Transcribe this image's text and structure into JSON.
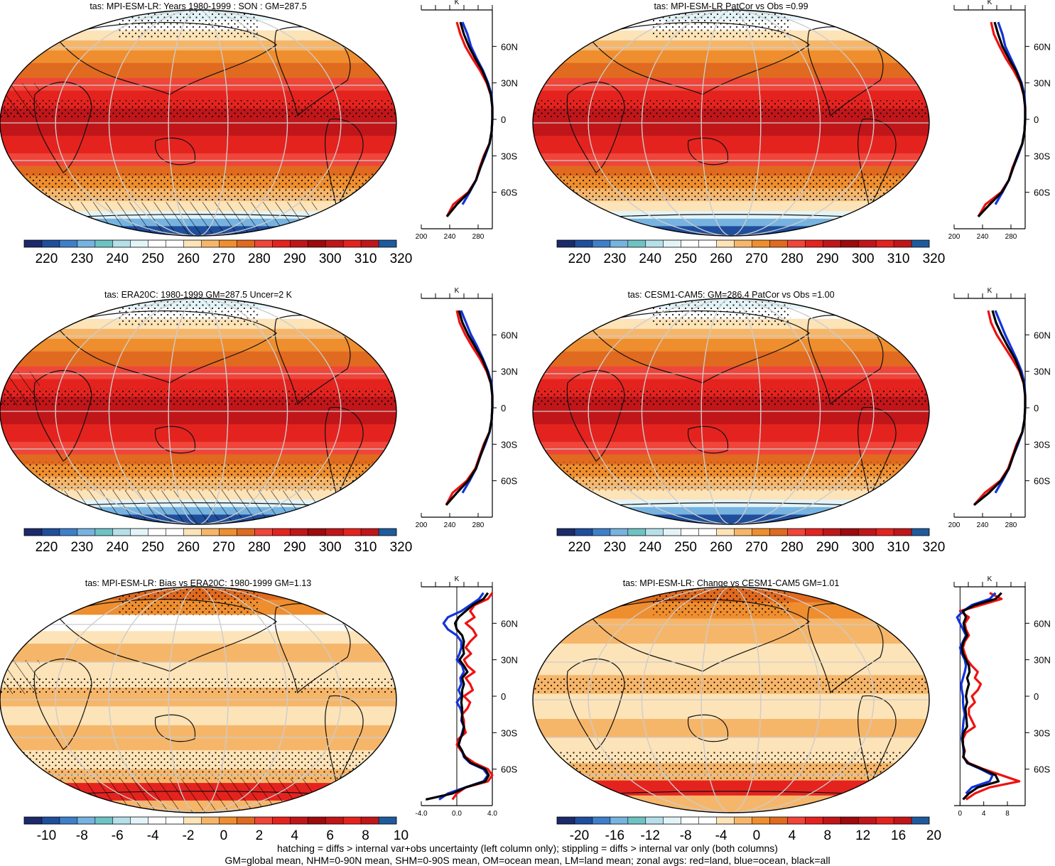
{
  "panels": [
    {
      "id": "p1",
      "title": "tas: MPI-ESM-LR: Years 1980-1999 : SON : GM=287.5",
      "colorbar": {
        "ticks": [
          "220",
          "230",
          "240",
          "250",
          "260",
          "270",
          "280",
          "290",
          "300",
          "310",
          "320"
        ],
        "colors": [
          "#1b2a6b",
          "#1f4e9c",
          "#3f7fc9",
          "#76b3e0",
          "#6fc2c4",
          "#b5e0ea",
          "#e3f4f8",
          "#ffffff",
          "#ffffff",
          "#fde3b8",
          "#f6b66a",
          "#ef8e2f",
          "#e06a1f",
          "#f0453a",
          "#e4231f",
          "#c0161a",
          "#9d0b0e",
          "#c0161a",
          "#e4231f",
          "#c0161a",
          "#1f5b9c"
        ]
      },
      "zonal": {
        "x_ticks": [
          "200",
          "240",
          "280"
        ],
        "xlim": [
          200,
          300
        ],
        "unit": "K",
        "y_ticks": [
          "60N",
          "30N",
          "0",
          "30S",
          "60S"
        ]
      },
      "hatching": true
    },
    {
      "id": "p2",
      "title": "tas: MPI-ESM-LR PatCor vs Obs =0.99",
      "colorbar": {
        "ticks": [
          "220",
          "230",
          "240",
          "250",
          "260",
          "270",
          "280",
          "290",
          "300",
          "310",
          "320"
        ],
        "colors": [
          "#1b2a6b",
          "#1f4e9c",
          "#3f7fc9",
          "#76b3e0",
          "#6fc2c4",
          "#b5e0ea",
          "#e3f4f8",
          "#ffffff",
          "#ffffff",
          "#fde3b8",
          "#f6b66a",
          "#ef8e2f",
          "#e06a1f",
          "#f0453a",
          "#e4231f",
          "#c0161a",
          "#9d0b0e",
          "#c0161a",
          "#e4231f",
          "#c0161a",
          "#1f5b9c"
        ]
      },
      "zonal": {
        "x_ticks": [
          "200",
          "240",
          "280"
        ],
        "xlim": [
          200,
          300
        ],
        "unit": "K",
        "y_ticks": [
          "60N",
          "30N",
          "0",
          "30S",
          "60S"
        ]
      },
      "hatching": false
    },
    {
      "id": "p3",
      "title": "tas: ERA20C: 1980-1999 GM=287.5 Uncer=2 K",
      "colorbar": {
        "ticks": [
          "220",
          "230",
          "240",
          "250",
          "260",
          "270",
          "280",
          "290",
          "300",
          "310",
          "320"
        ],
        "colors": [
          "#1b2a6b",
          "#1f4e9c",
          "#3f7fc9",
          "#76b3e0",
          "#6fc2c4",
          "#b5e0ea",
          "#e3f4f8",
          "#ffffff",
          "#ffffff",
          "#fde3b8",
          "#f6b66a",
          "#ef8e2f",
          "#e06a1f",
          "#f0453a",
          "#e4231f",
          "#c0161a",
          "#9d0b0e",
          "#c0161a",
          "#e4231f",
          "#c0161a",
          "#1f5b9c"
        ]
      },
      "zonal": {
        "x_ticks": [
          "200",
          "240",
          "280"
        ],
        "xlim": [
          200,
          300
        ],
        "unit": "K",
        "y_ticks": [
          "60N",
          "30N",
          "0",
          "30S",
          "60S"
        ]
      },
      "hatching": true
    },
    {
      "id": "p4",
      "title": "tas: CESM1-CAM5: GM=286.4 PatCor vs Obs =1.00",
      "colorbar": {
        "ticks": [
          "220",
          "230",
          "240",
          "250",
          "260",
          "270",
          "280",
          "290",
          "300",
          "310",
          "320"
        ],
        "colors": [
          "#1b2a6b",
          "#1f4e9c",
          "#3f7fc9",
          "#76b3e0",
          "#6fc2c4",
          "#b5e0ea",
          "#e3f4f8",
          "#ffffff",
          "#ffffff",
          "#fde3b8",
          "#f6b66a",
          "#ef8e2f",
          "#e06a1f",
          "#f0453a",
          "#e4231f",
          "#c0161a",
          "#9d0b0e",
          "#c0161a",
          "#e4231f",
          "#c0161a",
          "#1f5b9c"
        ]
      },
      "zonal": {
        "x_ticks": [
          "200",
          "240",
          "280"
        ],
        "xlim": [
          200,
          300
        ],
        "unit": "K",
        "y_ticks": [
          "60N",
          "30N",
          "0",
          "30S",
          "60S"
        ]
      },
      "hatching": false
    },
    {
      "id": "p5",
      "title": "tas: MPI-ESM-LR: Bias vs ERA20C: 1980-1999  GM=1.13",
      "colorbar": {
        "ticks": [
          "-10",
          "-8",
          "-6",
          "-4",
          "-2",
          "0",
          "2",
          "4",
          "6",
          "8",
          "10"
        ],
        "colors": [
          "#1b2a6b",
          "#1f4e9c",
          "#3f7fc9",
          "#76b3e0",
          "#6fc2c4",
          "#b5e0ea",
          "#e3f4f8",
          "#ffffff",
          "#ffffff",
          "#fde3b8",
          "#f6b66a",
          "#ef8e2f",
          "#e06a1f",
          "#f0453a",
          "#e4231f",
          "#c0161a",
          "#9d0b0e",
          "#c0161a",
          "#e4231f",
          "#c0161a",
          "#1f5b9c"
        ]
      },
      "zonal": {
        "x_ticks": [
          "-4.0",
          "0.0",
          "4.0"
        ],
        "xlim": [
          -4,
          4
        ],
        "unit": "K",
        "y_ticks": [
          "60N",
          "30N",
          "0",
          "30S",
          "60S"
        ]
      },
      "hatching": true
    },
    {
      "id": "p6",
      "title": "tas: MPI-ESM-LR: Change vs CESM1-CAM5 GM=1.01",
      "colorbar": {
        "ticks": [
          "-20",
          "-16",
          "-12",
          "-8",
          "-4",
          "0",
          "4",
          "8",
          "12",
          "16",
          "20"
        ],
        "colors": [
          "#1b2a6b",
          "#1f4e9c",
          "#3f7fc9",
          "#76b3e0",
          "#6fc2c4",
          "#b5e0ea",
          "#e3f4f8",
          "#ffffff",
          "#ffffff",
          "#fde3b8",
          "#f6b66a",
          "#ef8e2f",
          "#e06a1f",
          "#f0453a",
          "#e4231f",
          "#c0161a",
          "#9d0b0e",
          "#c0161a",
          "#e4231f",
          "#c0161a",
          "#1f5b9c"
        ]
      },
      "zonal": {
        "x_ticks": [
          "0",
          "4",
          "8"
        ],
        "xlim": [
          -1,
          11
        ],
        "unit": "K",
        "y_ticks": [
          "60N",
          "30N",
          "0",
          "30S",
          "60S"
        ]
      },
      "hatching": false
    }
  ],
  "chart_data": [
    {
      "type": "line",
      "panel": "p1",
      "xlim": [
        200,
        300
      ],
      "lat": [
        80,
        70,
        60,
        50,
        40,
        30,
        20,
        10,
        0,
        -10,
        -20,
        -30,
        -40,
        -50,
        -60,
        -70,
        -80
      ],
      "series": [
        {
          "name": "land",
          "color": "#ee1111",
          "values": [
            250,
            255,
            262,
            272,
            283,
            292,
            298,
            300,
            300,
            299,
            296,
            288,
            282,
            277,
            266,
            245,
            236
          ]
        },
        {
          "name": "ocean",
          "color": "#1133dd",
          "values": [
            258,
            265,
            270,
            278,
            287,
            294,
            299,
            300,
            300,
            299,
            296,
            290,
            283,
            277,
            268,
            258,
            null
          ]
        },
        {
          "name": "all",
          "color": "#000000",
          "values": [
            255,
            260,
            267,
            276,
            286,
            293,
            298,
            300,
            300,
            299,
            296,
            289,
            283,
            277,
            267,
            250,
            236
          ]
        }
      ]
    },
    {
      "type": "line",
      "panel": "p2",
      "xlim": [
        200,
        300
      ],
      "lat": [
        80,
        70,
        60,
        50,
        40,
        30,
        20,
        10,
        0,
        -10,
        -20,
        -30,
        -40,
        -50,
        -60,
        -70,
        -80
      ],
      "series": [
        {
          "name": "land",
          "color": "#ee1111",
          "values": [
            252,
            256,
            264,
            273,
            284,
            293,
            298,
            300,
            300,
            299,
            296,
            289,
            282,
            277,
            266,
            244,
            234
          ]
        },
        {
          "name": "ocean",
          "color": "#1133dd",
          "values": [
            262,
            268,
            272,
            280,
            288,
            295,
            299,
            300,
            300,
            299,
            296,
            290,
            283,
            277,
            268,
            258,
            null
          ]
        },
        {
          "name": "all",
          "color": "#000000",
          "values": [
            257,
            262,
            268,
            277,
            287,
            294,
            298,
            300,
            300,
            299,
            296,
            289,
            283,
            277,
            267,
            250,
            234
          ]
        }
      ]
    },
    {
      "type": "line",
      "panel": "p3",
      "xlim": [
        200,
        300
      ],
      "lat": [
        80,
        70,
        60,
        50,
        40,
        30,
        20,
        10,
        0,
        -10,
        -20,
        -30,
        -40,
        -50,
        -60,
        -70,
        -80
      ],
      "series": [
        {
          "name": "land",
          "color": "#ee1111",
          "values": [
            250,
            254,
            262,
            272,
            283,
            292,
            298,
            300,
            300,
            299,
            296,
            288,
            282,
            276,
            264,
            244,
            235
          ]
        },
        {
          "name": "ocean",
          "color": "#1133dd",
          "values": [
            256,
            263,
            270,
            279,
            287,
            294,
            299,
            300,
            300,
            299,
            296,
            290,
            283,
            277,
            268,
            258,
            null
          ]
        },
        {
          "name": "all",
          "color": "#000000",
          "values": [
            253,
            258,
            266,
            276,
            286,
            293,
            298,
            300,
            300,
            299,
            296,
            289,
            283,
            277,
            266,
            250,
            235
          ]
        }
      ]
    },
    {
      "type": "line",
      "panel": "p4",
      "xlim": [
        200,
        300
      ],
      "lat": [
        80,
        70,
        60,
        50,
        40,
        30,
        20,
        10,
        0,
        -10,
        -20,
        -30,
        -40,
        -50,
        -60,
        -70,
        -80
      ],
      "series": [
        {
          "name": "land",
          "color": "#ee1111",
          "values": [
            248,
            252,
            260,
            271,
            282,
            292,
            298,
            300,
            300,
            299,
            296,
            288,
            282,
            276,
            265,
            243,
            228
          ]
        },
        {
          "name": "ocean",
          "color": "#1133dd",
          "values": [
            258,
            265,
            272,
            280,
            288,
            295,
            299,
            300,
            300,
            299,
            296,
            290,
            283,
            277,
            268,
            258,
            null
          ]
        },
        {
          "name": "all",
          "color": "#000000",
          "values": [
            254,
            259,
            267,
            276,
            286,
            293,
            298,
            300,
            300,
            299,
            296,
            289,
            283,
            277,
            266,
            249,
            228
          ]
        }
      ]
    },
    {
      "type": "line",
      "panel": "p5",
      "xlim": [
        -4,
        4
      ],
      "lat": [
        85,
        80,
        75,
        70,
        65,
        60,
        55,
        50,
        45,
        40,
        35,
        30,
        25,
        20,
        15,
        10,
        5,
        0,
        -5,
        -10,
        -15,
        -20,
        -25,
        -30,
        -35,
        -40,
        -45,
        -50,
        -55,
        -60,
        -65,
        -70,
        -75,
        -80,
        -85
      ],
      "series": [
        {
          "name": "land",
          "color": "#ee1111",
          "values": [
            4.0,
            3.5,
            2.0,
            1.5,
            2.0,
            1.0,
            1.8,
            2.2,
            1.5,
            1.0,
            1.6,
            0.8,
            1.2,
            2.0,
            1.0,
            1.5,
            1.8,
            0.8,
            1.5,
            1.2,
            0.6,
            0.8,
            0.8,
            1.0,
            0.2,
            0.0,
            0.5,
            1.0,
            2.0,
            3.5,
            4.0,
            3.5,
            1.0,
            0.0,
            -0.5
          ]
        },
        {
          "name": "ocean",
          "color": "#1133dd",
          "values": [
            3.0,
            2.5,
            1.5,
            0.5,
            -1.0,
            -1.5,
            -1.0,
            0.0,
            0.5,
            0.5,
            0.3,
            0.0,
            0.6,
            0.8,
            0.4,
            0.5,
            0.2,
            0.5,
            0.0,
            0.4,
            0.6,
            0.5,
            0.8,
            0.6,
            0.4,
            0.2,
            0.6,
            0.8,
            1.5,
            3.0,
            3.5,
            3.0,
            1.0,
            -1.0,
            -2.0
          ]
        },
        {
          "name": "all",
          "color": "#000000",
          "values": [
            3.5,
            3.0,
            1.8,
            1.0,
            0.2,
            -0.2,
            0.0,
            0.6,
            0.8,
            0.7,
            0.8,
            0.3,
            0.8,
            1.2,
            0.6,
            0.8,
            0.6,
            0.6,
            0.5,
            0.6,
            0.6,
            0.6,
            0.8,
            0.7,
            0.4,
            0.2,
            0.6,
            0.9,
            1.6,
            3.2,
            3.6,
            3.2,
            1.0,
            -0.5,
            -3.5
          ]
        }
      ]
    },
    {
      "type": "line",
      "panel": "p6",
      "xlim": [
        -1,
        11
      ],
      "lat": [
        85,
        80,
        75,
        70,
        65,
        60,
        55,
        50,
        45,
        40,
        35,
        30,
        25,
        20,
        15,
        10,
        5,
        0,
        -5,
        -10,
        -15,
        -20,
        -25,
        -30,
        -35,
        -40,
        -45,
        -50,
        -55,
        -60,
        -65,
        -70,
        -75,
        -80,
        -85
      ],
      "series": [
        {
          "name": "land",
          "color": "#ee1111",
          "values": [
            5.0,
            7.0,
            3.5,
            0.0,
            1.5,
            0.8,
            1.0,
            1.5,
            0.8,
            0.5,
            0.8,
            1.2,
            2.0,
            3.0,
            2.5,
            3.5,
            3.0,
            2.0,
            2.5,
            1.5,
            1.5,
            2.0,
            2.5,
            1.0,
            0.5,
            0.5,
            0.8,
            0.5,
            1.5,
            4.0,
            7.0,
            10.0,
            5.0,
            2.5,
            1.0
          ]
        },
        {
          "name": "ocean",
          "color": "#1133dd",
          "values": [
            6.0,
            5.0,
            2.0,
            0.5,
            -0.5,
            0.0,
            0.5,
            1.0,
            0.5,
            0.0,
            0.3,
            0.8,
            1.0,
            0.8,
            0.5,
            0.2,
            0.3,
            0.5,
            0.5,
            0.6,
            0.8,
            0.6,
            0.5,
            0.4,
            0.3,
            0.5,
            0.6,
            0.6,
            1.2,
            3.5,
            5.5,
            5.0,
            2.0,
            1.0,
            null
          ]
        },
        {
          "name": "all",
          "color": "#000000",
          "values": [
            7.0,
            6.0,
            2.5,
            0.5,
            1.0,
            0.6,
            0.8,
            1.2,
            0.6,
            0.3,
            0.5,
            1.0,
            1.5,
            1.6,
            1.2,
            1.5,
            1.2,
            1.0,
            1.2,
            0.9,
            1.0,
            1.1,
            1.2,
            0.6,
            0.4,
            0.5,
            0.7,
            0.6,
            1.3,
            3.8,
            6.0,
            6.5,
            3.0,
            1.5,
            0.5
          ]
        }
      ]
    }
  ],
  "footer": {
    "line1": "hatching = diffs > internal var+obs uncertainty (left column only); stippling = diffs > internal var only (both columns)",
    "line2": "GM=global mean, NHM=0-90N mean, SHM=0-90S mean, OM=ocean mean, LM=land mean; zonal avgs: red=land, blue=ocean, black=all"
  }
}
